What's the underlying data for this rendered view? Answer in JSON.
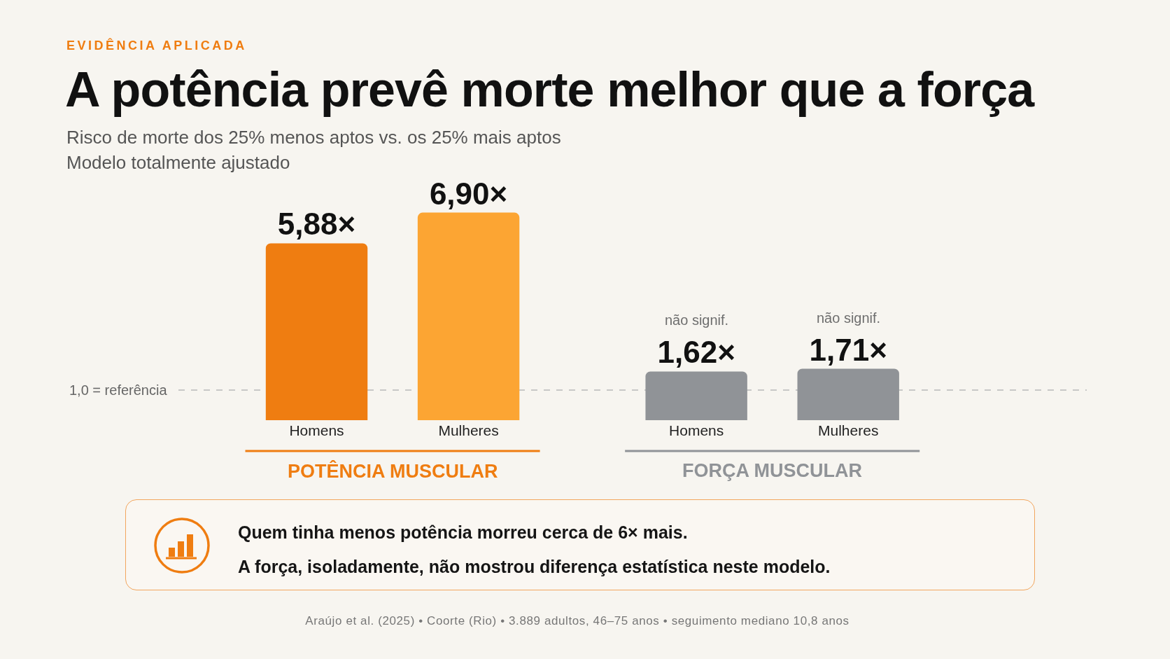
{
  "chart_data": {
    "type": "bar",
    "title": "A potência prevê morte melhor que a força",
    "subtitle": "Risco de morte dos 25% menos aptos vs. os 25% mais aptos\nModelo totalmente ajustado",
    "categories": [
      "Homens",
      "Mulheres",
      "Homens",
      "Mulheres"
    ],
    "series": [
      {
        "name": "POTÊNCIA MUSCULAR",
        "color": "#ef7d11",
        "colors": [
          "#ef7d11",
          "#fca533",
          null,
          null
        ],
        "values": [
          5.88,
          6.9,
          null,
          null
        ],
        "value_labels": [
          "5,88×",
          "6,90×",
          null,
          null
        ]
      },
      {
        "name": "FORÇA MUSCULAR",
        "color": "#909397",
        "values": [
          null,
          null,
          1.62,
          1.71
        ],
        "value_labels": [
          null,
          null,
          "1,62×",
          "1,71×"
        ]
      }
    ],
    "ref_lines": [
      {
        "axis": "y",
        "value": 1,
        "label": "1,0 = referência",
        "color": "#b9b9b9",
        "line_style": "dashed"
      }
    ],
    "annotations": [
      "EVIDÊNCIA APLICADA",
      "não signif.",
      "não signif.",
      "Quem tinha menos potência morreu cerca de 6× mais.",
      "A força, isoladamente, não mostrou diferença estatística neste modelo.",
      "Araújo et al. (2025) • Coorte (Rio) • 3.889 adultos, 46–75 anos • seguimento mediano 10,8 anos"
    ]
  }
}
